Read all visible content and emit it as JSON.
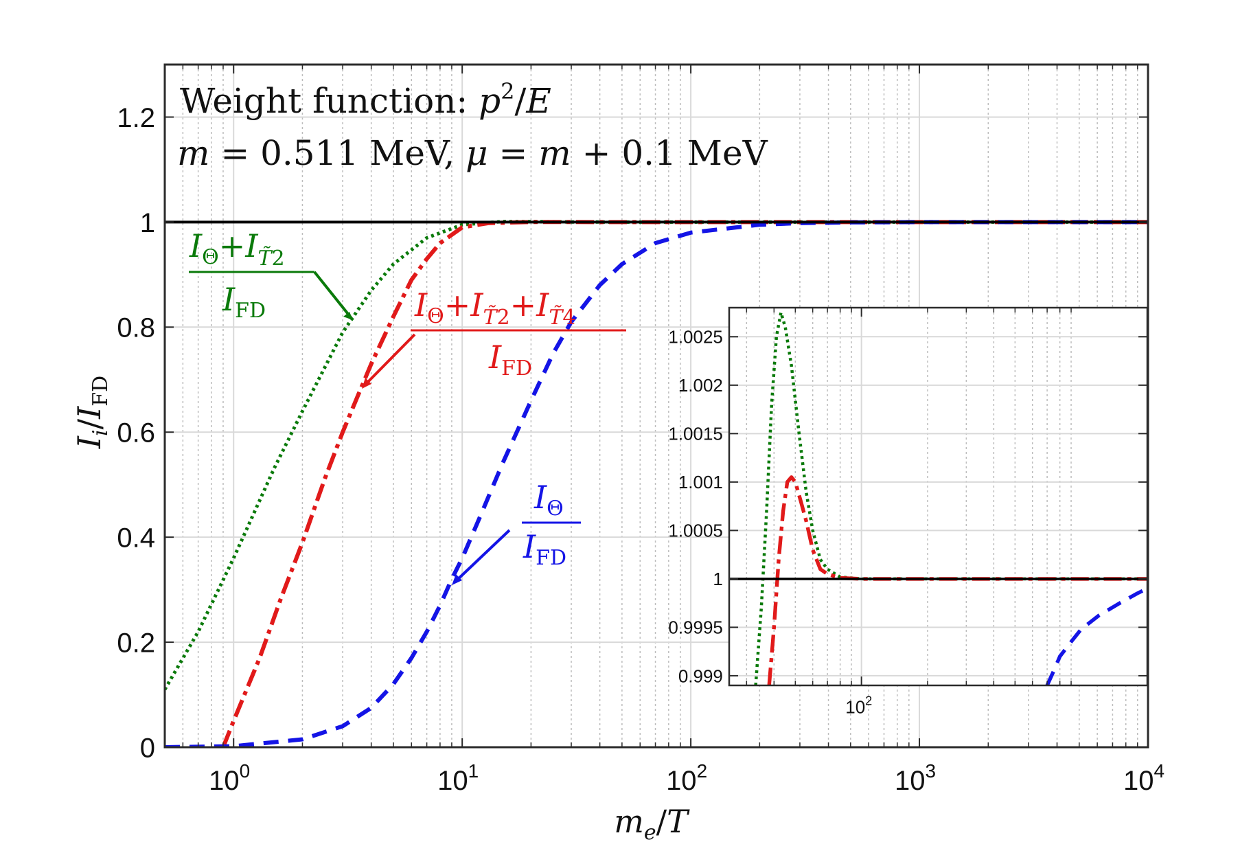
{
  "colors": {
    "green": "#0a7a0a",
    "red": "#e11a1a",
    "blue": "#1414e6",
    "black": "#000000",
    "grid_major": "#d9d9d9",
    "grid_minor": "#bdbdbd"
  },
  "chart_data": [
    {
      "type": "line",
      "xlabel": "m_e/T",
      "ylabel": "I_i/I_FD",
      "xscale": "log",
      "xlim": [
        0.5,
        10000
      ],
      "ylim": [
        0,
        1.3
      ],
      "yticks": [
        0,
        0.2,
        0.4,
        0.6,
        0.8,
        1,
        1.2
      ],
      "ytick_labels": [
        "0",
        "0.2",
        "0.4",
        "0.6",
        "0.8",
        "1",
        "1.2"
      ],
      "xticks": [
        1,
        10,
        100,
        1000,
        10000
      ],
      "xtick_labels": [
        {
          "base": "10",
          "exp": "0"
        },
        {
          "base": "10",
          "exp": "1"
        },
        {
          "base": "10",
          "exp": "2"
        },
        {
          "base": "10",
          "exp": "3"
        },
        {
          "base": "10",
          "exp": "4"
        }
      ],
      "grid": "major and minor",
      "annotations": {
        "title_line1": "Weight function: p²/E",
        "title_line2": "m = 0.511 MeV, μ = m + 0.1 MeV",
        "green_label": {
          "num": "I_Θ + I_T̃2",
          "den": "I_FD"
        },
        "red_label": {
          "num": "I_Θ + I_T̃2 + I_T̃4",
          "den": "I_FD"
        },
        "blue_label": {
          "num": "I_Θ",
          "den": "I_FD"
        }
      },
      "series": [
        {
          "style": "dotted",
          "color": "green",
          "x": [
            0.5,
            0.7,
            1,
            1.5,
            2,
            3,
            4,
            5,
            7,
            10,
            15,
            20,
            30,
            50,
            100,
            10000
          ],
          "y": [
            0.11,
            0.22,
            0.36,
            0.53,
            0.64,
            0.79,
            0.87,
            0.92,
            0.97,
            0.995,
            1.001,
            1.001,
            1.0003,
            1.0,
            1.0,
            1.0
          ]
        },
        {
          "style": "dash-dot",
          "color": "red",
          "x": [
            0.9,
            1,
            1.3,
            1.6,
            2,
            2.5,
            3,
            3.5,
            4,
            5,
            6,
            7,
            8,
            10,
            13,
            20,
            30,
            100,
            10000
          ],
          "y": [
            0.0,
            0.05,
            0.17,
            0.28,
            0.39,
            0.51,
            0.6,
            0.67,
            0.73,
            0.82,
            0.89,
            0.93,
            0.96,
            0.99,
            0.998,
            1.0003,
            1.0001,
            1.0,
            1.0
          ]
        },
        {
          "style": "dashed",
          "color": "blue",
          "x": [
            0.5,
            1,
            2,
            3,
            4,
            5,
            6,
            7,
            8,
            9,
            10,
            12,
            15,
            20,
            25,
            30,
            40,
            50,
            70,
            100,
            200,
            300,
            500,
            1000,
            10000
          ],
          "y": [
            0.0,
            0.002,
            0.015,
            0.04,
            0.075,
            0.12,
            0.17,
            0.22,
            0.27,
            0.32,
            0.36,
            0.44,
            0.54,
            0.66,
            0.75,
            0.81,
            0.88,
            0.92,
            0.96,
            0.98,
            0.995,
            0.998,
            0.9995,
            1.0,
            1.0
          ]
        },
        {
          "style": "solid",
          "color": "black",
          "x": [
            0.5,
            10000
          ],
          "y": [
            1,
            1
          ]
        }
      ]
    },
    {
      "type": "line",
      "role": "inset",
      "xscale": "log",
      "xlim": [
        25,
        2000
      ],
      "ylim": [
        0.9989,
        1.0028
      ],
      "yticks": [
        0.999,
        0.9995,
        1,
        1.0005,
        1.001,
        1.0015,
        1.002,
        1.0025
      ],
      "ytick_labels": [
        "0.999",
        "0.9995",
        "1",
        "1.0005",
        "1.001",
        "1.0015",
        "1.002",
        "1.0025"
      ],
      "xticks": [
        100
      ],
      "xtick_labels": [
        {
          "base": "10",
          "exp": "2"
        }
      ],
      "grid": "major and minor",
      "series": [
        {
          "style": "dotted",
          "color": "green",
          "x": [
            33,
            35,
            37,
            39,
            41,
            43,
            45,
            48,
            52,
            56,
            60,
            65,
            70,
            80,
            100,
            150,
            2000
          ],
          "y": [
            0.9989,
            0.9997,
            1.0007,
            1.0018,
            1.0025,
            1.00275,
            1.0026,
            1.0022,
            1.0015,
            1.0009,
            1.0005,
            1.0002,
            1.0001,
            1.00002,
            1.0,
            1.0,
            1.0
          ]
        },
        {
          "style": "dash-dot",
          "color": "red",
          "x": [
            38,
            40,
            42,
            44,
            46,
            48,
            50,
            53,
            56,
            60,
            65,
            70,
            80,
            100,
            150,
            2000
          ],
          "y": [
            0.9989,
            0.9995,
            1.0002,
            1.0007,
            1.001,
            1.00105,
            1.001,
            1.0008,
            1.0006,
            1.0003,
            1.0001,
            1.00005,
            1.00001,
            1.0,
            1.0,
            1.0
          ]
        },
        {
          "style": "dashed",
          "color": "blue",
          "x": [
            700,
            750,
            800,
            900,
            1000,
            1200,
            1500,
            1800,
            2000
          ],
          "y": [
            0.9989,
            0.99905,
            0.9992,
            0.99935,
            0.99948,
            0.99962,
            0.99975,
            0.99985,
            0.9999
          ]
        },
        {
          "style": "solid",
          "color": "black",
          "x": [
            25,
            2000
          ],
          "y": [
            1,
            1
          ]
        }
      ]
    }
  ]
}
